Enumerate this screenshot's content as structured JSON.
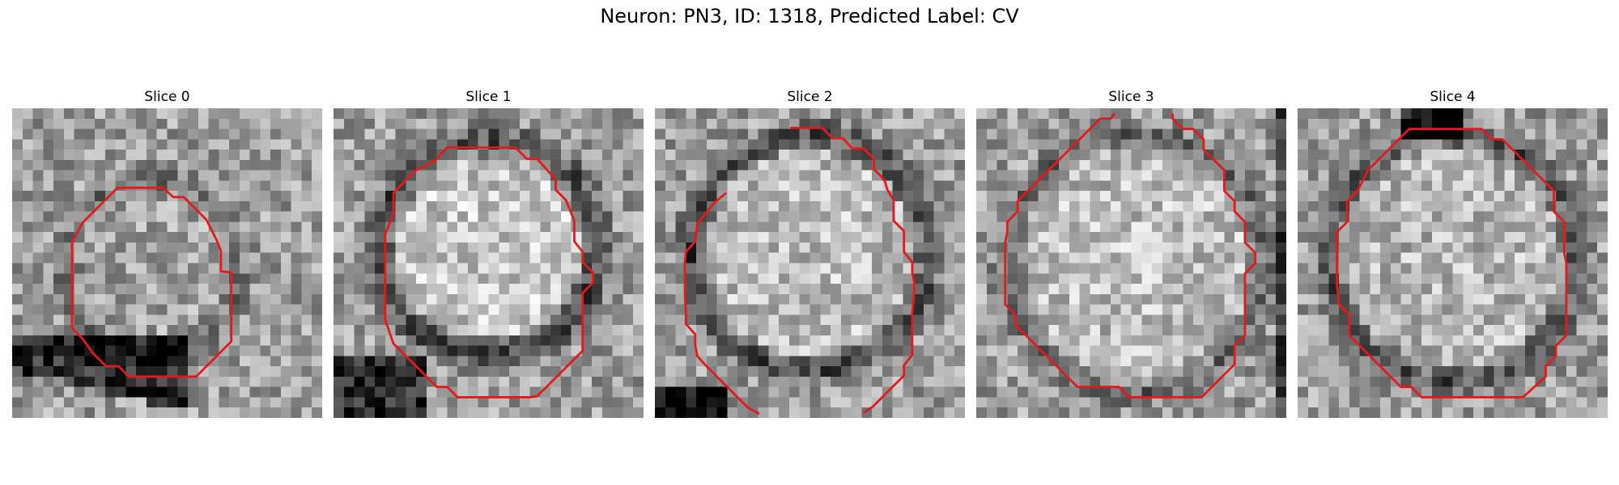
{
  "figure": {
    "title": "Neuron: PN3, ID: 1318, Predicted Label: CV"
  },
  "panels": [
    {
      "title": "Slice 0"
    },
    {
      "title": "Slice 1"
    },
    {
      "title": "Slice 2"
    },
    {
      "title": "Slice 3"
    },
    {
      "title": "Slice 4"
    }
  ],
  "colors": {
    "contour": "#e31a1c",
    "colormap": "grayscale"
  }
}
